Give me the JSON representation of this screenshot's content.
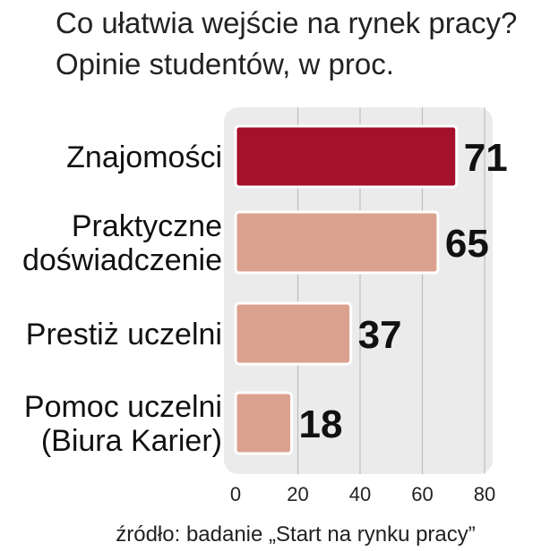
{
  "chart_data": {
    "type": "bar",
    "orientation": "horizontal",
    "title": "Co ułatwia wejście na rynek pracy?",
    "subtitle": "Opinie studentów, w proc.",
    "categories": [
      [
        "Znajomości"
      ],
      [
        "Praktyczne",
        "doświadczenie"
      ],
      [
        "Prestiż uczelni"
      ],
      [
        "Pomoc uczelni",
        "(Biura Karier)"
      ]
    ],
    "values": [
      71,
      65,
      37,
      18
    ],
    "value_labels": [
      "71",
      "65",
      "37",
      "18"
    ],
    "xlim": [
      0,
      80
    ],
    "xticks": [
      "0",
      "20",
      "40",
      "60",
      "80"
    ],
    "grid": true,
    "highlight_color": "#a5102a",
    "bar_color": "#daa18e",
    "plot_background": "#ebebeb",
    "source": "źródło: badanie „Start na rynku pracy”"
  }
}
